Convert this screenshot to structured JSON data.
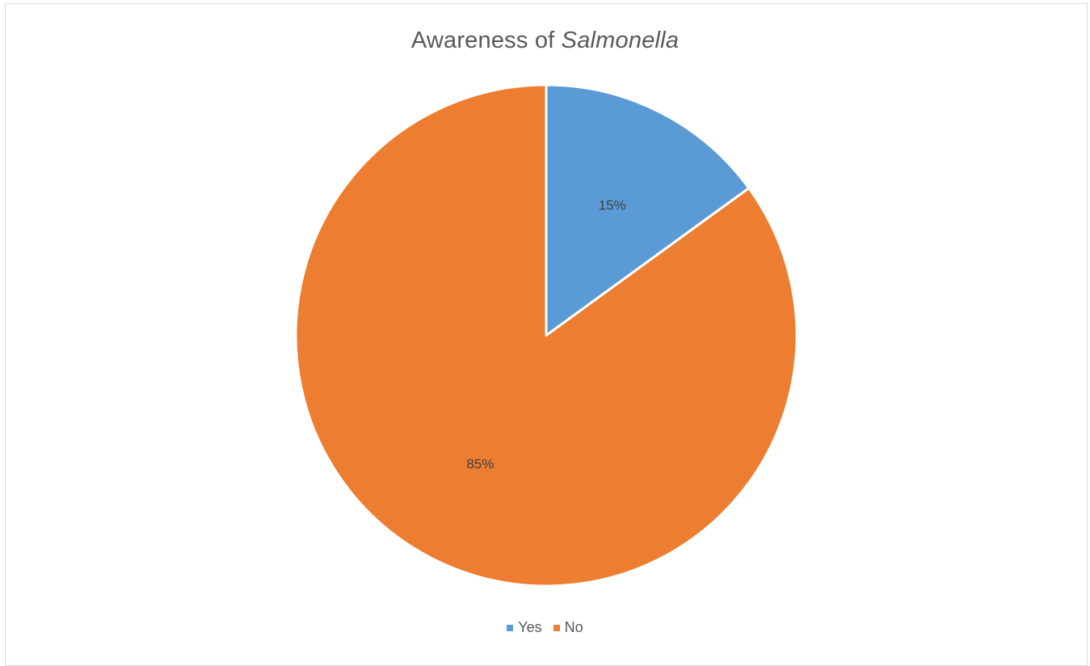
{
  "chart_data": {
    "type": "pie",
    "title": "Awareness of",
    "title_italic": "Salmonella",
    "categories": [
      "Yes",
      "No"
    ],
    "values": [
      15,
      85
    ],
    "data_labels": [
      "15%",
      "85%"
    ],
    "colors": [
      "#5b9bd5",
      "#ed7d31"
    ],
    "start_angle_deg": 0,
    "direction": "clockwise",
    "legend": {
      "position": "bottom",
      "entries": [
        "Yes",
        "No"
      ]
    }
  }
}
